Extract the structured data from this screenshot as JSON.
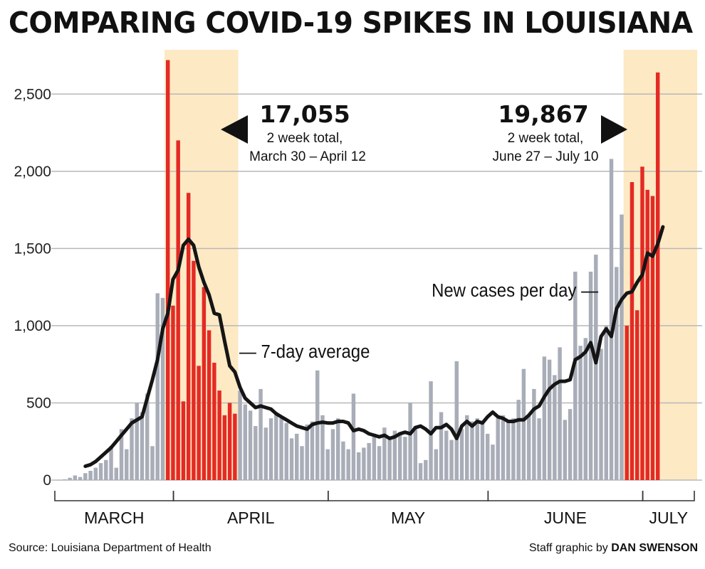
{
  "title": "COMPARING COVID-19 SPIKES IN LOUISIANA",
  "source": "Source: Louisiana Department of Health",
  "credit_prefix": "Staff graphic by",
  "credit_name": "DAN SWENSON",
  "colors": {
    "highlight": "#e42a24",
    "bar": "#a8adb8",
    "band": "#fde9c4",
    "line": "#151515",
    "grid": "#b8b8b8"
  },
  "annotations": {
    "left_total": "17,055",
    "left_line1": "2 week total,",
    "left_line2": "March 30 – April 12",
    "right_total": "19,867",
    "right_line1": "2 week total,",
    "right_line2": "June 27 – July 10",
    "bars_label": "New cases per day —",
    "line_label": "— 7-day average"
  },
  "chart_data": {
    "type": "bar",
    "yticks": [
      0,
      500,
      1000,
      1500,
      2000,
      2500
    ],
    "ytick_labels": [
      "0",
      "500",
      "1,000",
      "1,500",
      "2,000",
      "2,500"
    ],
    "ylim": [
      0,
      2750
    ],
    "months": [
      "MARCH",
      "APRIL",
      "MAY",
      "JUNE",
      "JULY"
    ],
    "x_start": "2020-03-09",
    "x_end": "2020-07-10",
    "highlight_ranges": [
      [
        "2020-03-30",
        "2020-04-12"
      ],
      [
        "2020-06-27",
        "2020-07-10"
      ]
    ],
    "series": [
      {
        "name": "New cases per day",
        "values": [
          1,
          5,
          15,
          30,
          20,
          45,
          60,
          80,
          110,
          130,
          220,
          80,
          330,
          200,
          400,
          500,
          440,
          560,
          220,
          1210,
          1180,
          2720,
          1130,
          2200,
          510,
          1860,
          1420,
          740,
          1250,
          970,
          760,
          580,
          420,
          500,
          430,
          580,
          490,
          450,
          350,
          590,
          340,
          400,
          440,
          400,
          370,
          270,
          300,
          220,
          360,
          380,
          710,
          420,
          200,
          330,
          400,
          250,
          200,
          560,
          180,
          210,
          240,
          300,
          220,
          340,
          280,
          320,
          310,
          280,
          500,
          350,
          110,
          130,
          640,
          200,
          440,
          320,
          260,
          770,
          330,
          420,
          380,
          400,
          370,
          300,
          230,
          400,
          420,
          380,
          400,
          520,
          720,
          420,
          590,
          400,
          800,
          780,
          680,
          860,
          390,
          460,
          1350,
          870,
          920,
          1350,
          1460,
          850,
          1000,
          2080,
          1380,
          1720,
          1000,
          1930,
          1100,
          2030,
          1880,
          1840,
          2640
        ]
      },
      {
        "name": "7-day average",
        "values": [
          10,
          20,
          35,
          50,
          65,
          90,
          100,
          120,
          150,
          180,
          210,
          250,
          290,
          330,
          370,
          390,
          410,
          530,
          650,
          780,
          980,
          1080,
          1300,
          1360,
          1520,
          1560,
          1520,
          1380,
          1280,
          1200,
          1080,
          1070,
          900,
          740,
          700,
          600,
          530,
          500,
          470,
          480,
          470,
          460,
          430,
          410,
          390,
          370,
          350,
          340,
          330,
          360,
          370,
          375,
          370,
          370,
          380,
          380,
          370,
          320,
          330,
          320,
          300,
          290,
          280,
          290,
          270,
          280,
          300,
          310,
          300,
          340,
          350,
          330,
          300,
          340,
          340,
          360,
          330,
          270,
          350,
          380,
          350,
          380,
          370,
          410,
          440,
          410,
          400,
          380,
          380,
          390,
          390,
          420,
          460,
          480,
          540,
          590,
          620,
          640,
          640,
          650,
          780,
          800,
          830,
          890,
          760,
          930,
          980,
          930,
          1110,
          1170,
          1210,
          1220,
          1280,
          1330,
          1470,
          1450,
          1530,
          1640
        ]
      }
    ]
  }
}
